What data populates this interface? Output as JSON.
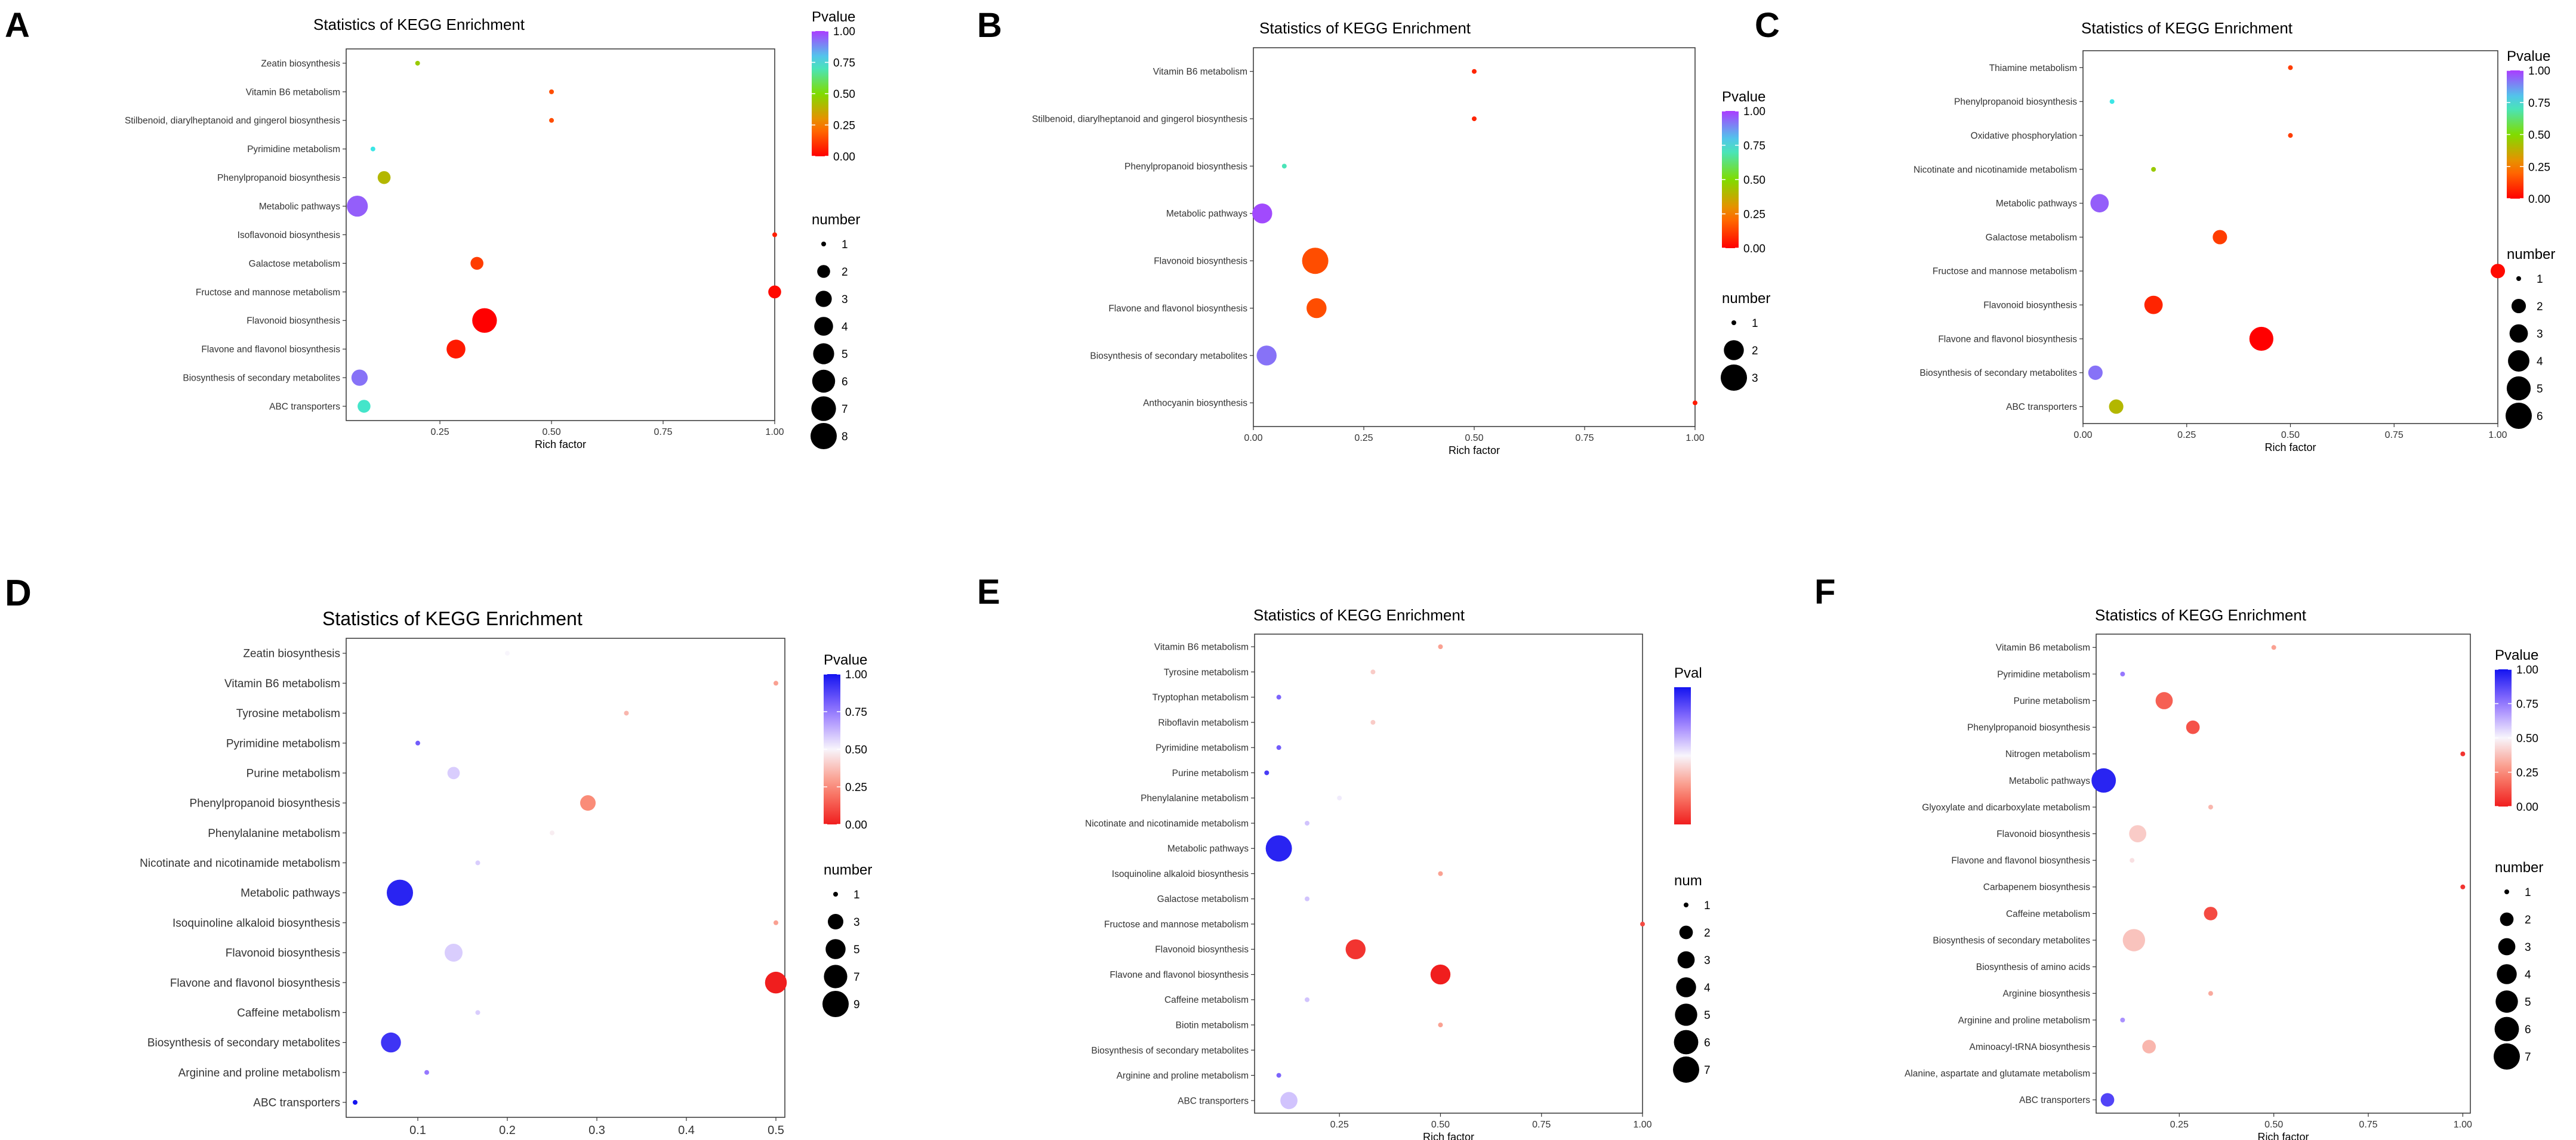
{
  "chart_data": [
    {
      "panel": "A",
      "type": "scatter",
      "title": "Statistics of KEGG Enrichment",
      "xlabel": "Rich factor",
      "xlim": [
        0.04,
        1.0
      ],
      "xticks": [
        0.25,
        0.5,
        0.75,
        1.0
      ],
      "xtick_labels": [
        "0.25",
        "0.50",
        "0.75",
        "1.00"
      ],
      "palette": "rainbow",
      "pvalue_legend": {
        "title": "Pvalue",
        "ticks": [
          "1.00",
          "0.75",
          "0.50",
          "0.25",
          "0.00"
        ]
      },
      "number_legend": {
        "title": "number",
        "values": [
          1,
          2,
          3,
          4,
          5,
          6,
          7,
          8
        ]
      },
      "size_max": 8,
      "points": [
        {
          "term": "Zeatin biosynthesis",
          "rich": 0.2,
          "number": 1,
          "pvalue": 0.45
        },
        {
          "term": "Vitamin B6 metabolism",
          "rich": 0.5,
          "number": 1,
          "pvalue": 0.15
        },
        {
          "term": "Stilbenoid, diarylheptanoid and gingerol biosynthesis",
          "rich": 0.5,
          "number": 1,
          "pvalue": 0.15
        },
        {
          "term": "Pyrimidine metabolism",
          "rich": 0.1,
          "number": 1,
          "pvalue": 0.75
        },
        {
          "term": "Phenylpropanoid biosynthesis",
          "rich": 0.125,
          "number": 2,
          "pvalue": 0.4
        },
        {
          "term": "Metabolic pathways",
          "rich": 0.065,
          "number": 5,
          "pvalue": 0.95
        },
        {
          "term": "Isoflavonoid biosynthesis",
          "rich": 1.0,
          "number": 1,
          "pvalue": 0.06
        },
        {
          "term": "Galactose metabolism",
          "rich": 0.333,
          "number": 2,
          "pvalue": 0.12
        },
        {
          "term": "Fructose and mannose metabolism",
          "rich": 1.0,
          "number": 2,
          "pvalue": 0.02
        },
        {
          "term": "Flavonoid biosynthesis",
          "rich": 0.35,
          "number": 7,
          "pvalue": 0.0
        },
        {
          "term": "Flavone and flavonol biosynthesis",
          "rich": 0.286,
          "number": 4,
          "pvalue": 0.05
        },
        {
          "term": "Biosynthesis of secondary metabolites",
          "rich": 0.07,
          "number": 3,
          "pvalue": 0.92
        },
        {
          "term": "ABC transporters",
          "rich": 0.08,
          "number": 2,
          "pvalue": 0.72
        }
      ]
    },
    {
      "panel": "B",
      "type": "scatter",
      "title": "Statistics of KEGG Enrichment",
      "xlabel": "Rich factor",
      "xlim": [
        0.0,
        1.0
      ],
      "xticks": [
        0.0,
        0.25,
        0.5,
        0.75,
        1.0
      ],
      "xtick_labels": [
        "0.00",
        "0.25",
        "0.50",
        "0.75",
        "1.00"
      ],
      "palette": "rainbow",
      "pvalue_legend": {
        "title": "Pvalue",
        "ticks": [
          "1.00",
          "0.75",
          "0.50",
          "0.25",
          "0.00"
        ]
      },
      "number_legend": {
        "title": "number",
        "values": [
          1,
          2,
          3
        ]
      },
      "size_max": 3,
      "points": [
        {
          "term": "Vitamin B6 metabolism",
          "rich": 0.5,
          "number": 1,
          "pvalue": 0.07
        },
        {
          "term": "Stilbenoid, diarylheptanoid and gingerol biosynthesis",
          "rich": 0.5,
          "number": 1,
          "pvalue": 0.07
        },
        {
          "term": "Phenylpropanoid biosynthesis",
          "rich": 0.07,
          "number": 1,
          "pvalue": 0.7
        },
        {
          "term": "Metabolic pathways",
          "rich": 0.02,
          "number": 2,
          "pvalue": 0.98
        },
        {
          "term": "Flavonoid biosynthesis",
          "rich": 0.14,
          "number": 3,
          "pvalue": 0.15
        },
        {
          "term": "Flavone and flavonol biosynthesis",
          "rich": 0.143,
          "number": 2,
          "pvalue": 0.15
        },
        {
          "term": "Biosynthesis of secondary metabolites",
          "rich": 0.03,
          "number": 2,
          "pvalue": 0.92
        },
        {
          "term": "Anthocyanin biosynthesis",
          "rich": 1.0,
          "number": 1,
          "pvalue": 0.05
        }
      ]
    },
    {
      "panel": "C",
      "type": "scatter",
      "title": "Statistics of KEGG Enrichment",
      "xlabel": "Rich factor",
      "xlim": [
        0.0,
        1.0
      ],
      "xticks": [
        0.0,
        0.25,
        0.5,
        0.75,
        1.0
      ],
      "xtick_labels": [
        "0.00",
        "0.25",
        "0.50",
        "0.75",
        "1.00"
      ],
      "palette": "rainbow",
      "pvalue_legend": {
        "title": "Pvalue",
        "ticks": [
          "1.00",
          "0.75",
          "0.50",
          "0.25",
          "0.00"
        ]
      },
      "number_legend": {
        "title": "number",
        "values": [
          1,
          2,
          3,
          4,
          5,
          6
        ]
      },
      "size_max": 6,
      "points": [
        {
          "term": "Thiamine metabolism",
          "rich": 0.5,
          "number": 1,
          "pvalue": 0.12
        },
        {
          "term": "Phenylpropanoid biosynthesis",
          "rich": 0.07,
          "number": 1,
          "pvalue": 0.75
        },
        {
          "term": "Oxidative phosphorylation",
          "rich": 0.5,
          "number": 1,
          "pvalue": 0.12
        },
        {
          "term": "Nicotinate and nicotinamide metabolism",
          "rich": 0.17,
          "number": 1,
          "pvalue": 0.45
        },
        {
          "term": "Metabolic pathways",
          "rich": 0.04,
          "number": 3,
          "pvalue": 0.95
        },
        {
          "term": "Galactose metabolism",
          "rich": 0.33,
          "number": 2,
          "pvalue": 0.12
        },
        {
          "term": "Fructose and mannose metabolism",
          "rich": 1.0,
          "number": 2,
          "pvalue": 0.02
        },
        {
          "term": "Flavonoid biosynthesis",
          "rich": 0.17,
          "number": 3,
          "pvalue": 0.07
        },
        {
          "term": "Flavone and flavonol biosynthesis",
          "rich": 0.43,
          "number": 5,
          "pvalue": 0.0
        },
        {
          "term": "Biosynthesis of secondary metabolites",
          "rich": 0.03,
          "number": 2,
          "pvalue": 0.92
        },
        {
          "term": "ABC transporters",
          "rich": 0.08,
          "number": 2,
          "pvalue": 0.4
        }
      ]
    },
    {
      "panel": "D",
      "type": "scatter",
      "title": "Statistics of KEGG Enrichment",
      "xlabel": "Rich factor",
      "xlim": [
        0.02,
        0.51
      ],
      "xticks": [
        0.1,
        0.2,
        0.3,
        0.4,
        0.5
      ],
      "xtick_labels": [
        "0.1",
        "0.2",
        "0.3",
        "0.4",
        "0.5"
      ],
      "palette": "bwr",
      "pvalue_legend": {
        "title": "Pvalue",
        "ticks": [
          "1.00",
          "0.75",
          "0.50",
          "0.25",
          "0.00"
        ]
      },
      "number_legend": {
        "title": "number",
        "values": [
          1,
          3,
          5,
          7,
          9
        ]
      },
      "size_max": 9,
      "points": [
        {
          "term": "Zeatin biosynthesis",
          "rich": 0.2,
          "number": 1,
          "pvalue": 0.5
        },
        {
          "term": "Vitamin B6 metabolism",
          "rich": 0.5,
          "number": 1,
          "pvalue": 0.3
        },
        {
          "term": "Tyrosine metabolism",
          "rich": 0.333,
          "number": 1,
          "pvalue": 0.35
        },
        {
          "term": "Pyrimidine metabolism",
          "rich": 0.1,
          "number": 1,
          "pvalue": 0.82
        },
        {
          "term": "Purine metabolism",
          "rich": 0.14,
          "number": 2,
          "pvalue": 0.58
        },
        {
          "term": "Phenylpropanoid biosynthesis",
          "rich": 0.29,
          "number": 3,
          "pvalue": 0.25
        },
        {
          "term": "Phenylalanine metabolism",
          "rich": 0.25,
          "number": 1,
          "pvalue": 0.48
        },
        {
          "term": "Nicotinate and nicotinamide metabolism",
          "rich": 0.167,
          "number": 1,
          "pvalue": 0.58
        },
        {
          "term": "Metabolic pathways",
          "rich": 0.08,
          "number": 9,
          "pvalue": 0.96
        },
        {
          "term": "Isoquinoline alkaloid biosynthesis",
          "rich": 0.5,
          "number": 1,
          "pvalue": 0.3
        },
        {
          "term": "Flavonoid biosynthesis",
          "rich": 0.14,
          "number": 4,
          "pvalue": 0.58
        },
        {
          "term": "Flavone and flavonol biosynthesis",
          "rich": 0.5,
          "number": 6,
          "pvalue": 0.0
        },
        {
          "term": "Caffeine metabolism",
          "rich": 0.167,
          "number": 1,
          "pvalue": 0.58
        },
        {
          "term": "Biosynthesis of secondary metabolites",
          "rich": 0.07,
          "number": 5,
          "pvalue": 0.92
        },
        {
          "term": "Arginine and proline metabolism",
          "rich": 0.11,
          "number": 1,
          "pvalue": 0.75
        },
        {
          "term": "ABC transporters",
          "rich": 0.03,
          "number": 1,
          "pvalue": 1.0
        }
      ]
    },
    {
      "panel": "E",
      "type": "scatter",
      "title": "Statistics of KEGG Enrichment",
      "xlabel": "Rich factor",
      "xlim": [
        0.04,
        1.0
      ],
      "xticks": [
        0.25,
        0.5,
        0.75,
        1.0
      ],
      "xtick_labels": [
        "0.25",
        "0.50",
        "0.75",
        "1.00"
      ],
      "palette": "bwr",
      "pvalue_legend": {
        "title": "Pval",
        "ticks": []
      },
      "number_legend": {
        "title": "num",
        "values": [
          1,
          2,
          3,
          4,
          5,
          6,
          7
        ]
      },
      "size_max": 7,
      "points": [
        {
          "term": "Vitamin B6 metabolism",
          "rich": 0.5,
          "number": 1,
          "pvalue": 0.3
        },
        {
          "term": "Tyrosine metabolism",
          "rich": 0.333,
          "number": 1,
          "pvalue": 0.4
        },
        {
          "term": "Tryptophan metabolism",
          "rich": 0.1,
          "number": 1,
          "pvalue": 0.8
        },
        {
          "term": "Riboflavin metabolism",
          "rich": 0.333,
          "number": 1,
          "pvalue": 0.4
        },
        {
          "term": "Pyrimidine metabolism",
          "rich": 0.1,
          "number": 1,
          "pvalue": 0.82
        },
        {
          "term": "Purine metabolism",
          "rich": 0.07,
          "number": 1,
          "pvalue": 0.9
        },
        {
          "term": "Phenylalanine metabolism",
          "rich": 0.25,
          "number": 1,
          "pvalue": 0.52
        },
        {
          "term": "Nicotinate and nicotinamide metabolism",
          "rich": 0.17,
          "number": 1,
          "pvalue": 0.6
        },
        {
          "term": "Metabolic pathways",
          "rich": 0.1,
          "number": 7,
          "pvalue": 0.96
        },
        {
          "term": "Isoquinoline alkaloid biosynthesis",
          "rich": 0.5,
          "number": 1,
          "pvalue": 0.3
        },
        {
          "term": "Galactose metabolism",
          "rich": 0.17,
          "number": 1,
          "pvalue": 0.6
        },
        {
          "term": "Fructose and mannose metabolism",
          "rich": 1.0,
          "number": 1,
          "pvalue": 0.1
        },
        {
          "term": "Flavonoid biosynthesis",
          "rich": 0.29,
          "number": 4,
          "pvalue": 0.05
        },
        {
          "term": "Flavone and flavonol biosynthesis",
          "rich": 0.5,
          "number": 4,
          "pvalue": 0.0
        },
        {
          "term": "Caffeine metabolism",
          "rich": 0.17,
          "number": 1,
          "pvalue": 0.6
        },
        {
          "term": "Biotin metabolism",
          "rich": 0.5,
          "number": 1,
          "pvalue": 0.3
        },
        {
          "term": "Biosynthesis of secondary metabolites",
          "rich": 0.05,
          "number": 0,
          "pvalue": 0.5
        },
        {
          "term": "Arginine and proline metabolism",
          "rich": 0.1,
          "number": 1,
          "pvalue": 0.8
        },
        {
          "term": "ABC transporters",
          "rich": 0.125,
          "number": 3,
          "pvalue": 0.6
        }
      ]
    },
    {
      "panel": "F",
      "type": "scatter",
      "title": "Statistics of KEGG Enrichment",
      "xlabel": "Rich factor",
      "xlim": [
        0.03,
        1.02
      ],
      "xticks": [
        0.25,
        0.5,
        0.75,
        1.0
      ],
      "xtick_labels": [
        "0.25",
        "0.50",
        "0.75",
        "1.00"
      ],
      "palette": "bwr",
      "pvalue_legend": {
        "title": "Pvalue",
        "ticks": [
          "1.00",
          "0.75",
          "0.50",
          "0.25",
          "0.00"
        ]
      },
      "number_legend": {
        "title": "number",
        "values": [
          1,
          2,
          3,
          4,
          5,
          6,
          7
        ]
      },
      "size_max": 7,
      "points": [
        {
          "term": "Vitamin B6 metabolism",
          "rich": 0.5,
          "number": 1,
          "pvalue": 0.3
        },
        {
          "term": "Pyrimidine metabolism",
          "rich": 0.1,
          "number": 1,
          "pvalue": 0.75
        },
        {
          "term": "Purine metabolism",
          "rich": 0.21,
          "number": 3,
          "pvalue": 0.15
        },
        {
          "term": "Phenylpropanoid biosynthesis",
          "rich": 0.286,
          "number": 2,
          "pvalue": 0.12
        },
        {
          "term": "Nitrogen metabolism",
          "rich": 1.0,
          "number": 1,
          "pvalue": 0.05
        },
        {
          "term": "Metabolic pathways",
          "rich": 0.05,
          "number": 6,
          "pvalue": 0.96
        },
        {
          "term": "Glyoxylate and dicarboxylate metabolism",
          "rich": 0.333,
          "number": 1,
          "pvalue": 0.35
        },
        {
          "term": "Flavonoid biosynthesis",
          "rich": 0.14,
          "number": 3,
          "pvalue": 0.4
        },
        {
          "term": "Flavone and flavonol biosynthesis",
          "rich": 0.125,
          "number": 1,
          "pvalue": 0.45
        },
        {
          "term": "Carbapenem biosynthesis",
          "rich": 1.0,
          "number": 1,
          "pvalue": 0.05
        },
        {
          "term": "Caffeine metabolism",
          "rich": 0.333,
          "number": 2,
          "pvalue": 0.1
        },
        {
          "term": "Biosynthesis of secondary metabolites",
          "rich": 0.13,
          "number": 5,
          "pvalue": 0.38
        },
        {
          "term": "Biosynthesis of amino acids",
          "rich": 0.05,
          "number": 0,
          "pvalue": 0.5
        },
        {
          "term": "Arginine biosynthesis",
          "rich": 0.333,
          "number": 1,
          "pvalue": 0.32
        },
        {
          "term": "Arginine and proline metabolism",
          "rich": 0.1,
          "number": 1,
          "pvalue": 0.7
        },
        {
          "term": "Aminoacyl-tRNA biosynthesis",
          "rich": 0.17,
          "number": 2,
          "pvalue": 0.35
        },
        {
          "term": "Alanine, aspartate and glutamate metabolism",
          "rich": 0.05,
          "number": 0,
          "pvalue": 0.5
        },
        {
          "term": "ABC transporters",
          "rich": 0.06,
          "number": 2,
          "pvalue": 0.88
        }
      ]
    }
  ]
}
